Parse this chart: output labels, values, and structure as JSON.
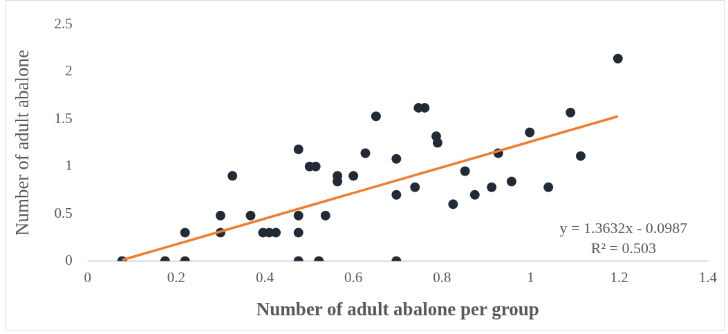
{
  "chart_data": {
    "type": "scatter",
    "xlabel": "Number of adult abalone per group",
    "ylabel": "Number of adult abalone",
    "xlim": [
      0,
      1.4
    ],
    "xticks": [
      0,
      0.2,
      0.4,
      0.6,
      0.8,
      1,
      1.2,
      1.4
    ],
    "ylim": [
      0,
      2.5
    ],
    "yticks": [
      0,
      0.5,
      1,
      1.5,
      2,
      2.5
    ],
    "grid": false,
    "legend": false,
    "marker": "circle",
    "series": [
      {
        "color": "#222a35",
        "x": [
          0.078,
          0.175,
          0.22,
          0.22,
          0.3,
          0.3,
          0.327,
          0.368,
          0.396,
          0.41,
          0.425,
          0.476,
          0.476,
          0.476,
          0.476,
          0.522,
          0.501,
          0.515,
          0.537,
          0.564,
          0.564,
          0.6,
          0.627,
          0.651,
          0.697,
          0.697,
          0.697,
          0.739,
          0.747,
          0.761,
          0.787,
          0.79,
          0.825,
          0.852,
          0.874,
          0.912,
          0.927,
          0.957,
          0.998,
          1.04,
          1.09,
          1.113,
          1.197
        ],
        "values": [
          0,
          0,
          0,
          0.3,
          0.48,
          0.3,
          0.9,
          0.48,
          0.3,
          0.3,
          0.3,
          1.18,
          0.48,
          0.3,
          0,
          0,
          1,
          1,
          0.48,
          0.9,
          0.84,
          0.9,
          1.14,
          1.53,
          1.08,
          0.7,
          0,
          0.78,
          1.62,
          1.62,
          1.32,
          1.25,
          0.6,
          0.95,
          0.7,
          0.78,
          1.14,
          0.84,
          1.36,
          0.78,
          1.57,
          1.11,
          2.14
        ]
      },
      {
        "type": "line",
        "color": "#ed7d31",
        "x": [
          0.078,
          1.197
        ],
        "values": [
          0.01,
          1.53
        ],
        "marker": "none"
      }
    ],
    "annotations": [
      "y = 1.3632x - 0.0987",
      "R² = 0.503"
    ]
  }
}
